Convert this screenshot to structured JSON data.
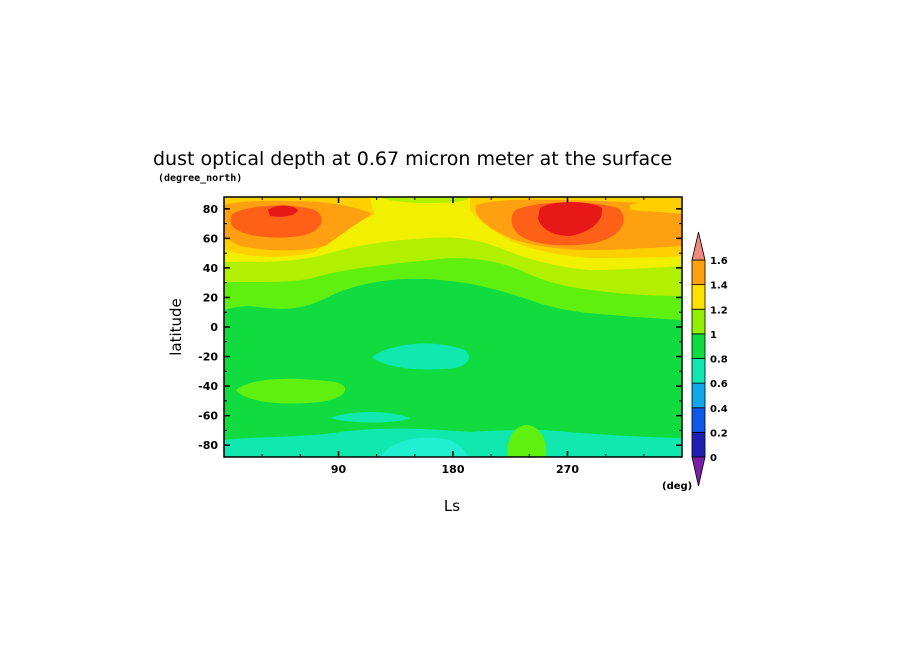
{
  "chart_data": {
    "type": "contour",
    "title": "dust optical depth at 0.67 micron meter at the surface",
    "xlabel": "Ls",
    "ylabel": "latitude",
    "y_unit": "(degree_north)",
    "colorbar_unit": "(deg)",
    "xlim": [
      0,
      360
    ],
    "ylim": [
      -88,
      88
    ],
    "x_ticks": [
      90,
      180,
      270
    ],
    "y_ticks": [
      80,
      60,
      40,
      20,
      0,
      -20,
      -40,
      -60,
      -80
    ],
    "colorbar": {
      "levels": [
        0,
        0.2,
        0.4,
        0.6,
        0.8,
        1,
        1.2,
        1.4,
        1.6
      ],
      "labels": [
        "0",
        "0.2",
        "0.4",
        "0.6",
        "0.8",
        "1",
        "1.2",
        "1.4",
        "1.6"
      ],
      "colors": [
        "#7a1fa8",
        "#2020b0",
        "#1058e8",
        "#10a8e8",
        "#10e8b0",
        "#10dc40",
        "#90f000",
        "#ffe000",
        "#ffa010",
        "#f04020",
        "#f08880"
      ]
    },
    "bands_description_by_level": [
      {
        "range": [
          0.6,
          0.7
        ],
        "color": "#10e8b0"
      },
      {
        "range": [
          0.7,
          0.8
        ],
        "color": "#10dc40"
      },
      {
        "range": [
          0.8,
          0.9
        ],
        "color": "#60f010"
      },
      {
        "range": [
          0.9,
          1.0
        ],
        "color": "#b0f000"
      },
      {
        "range": [
          1.0,
          1.1
        ],
        "color": "#f0f000"
      },
      {
        "range": [
          1.1,
          1.2
        ],
        "color": "#ffd000"
      },
      {
        "range": [
          1.2,
          1.3
        ],
        "color": "#ffa010"
      },
      {
        "range": [
          1.3,
          1.4
        ],
        "color": "#ff6018"
      },
      {
        "range": [
          1.4,
          1.5
        ],
        "color": "#e81818"
      }
    ]
  }
}
